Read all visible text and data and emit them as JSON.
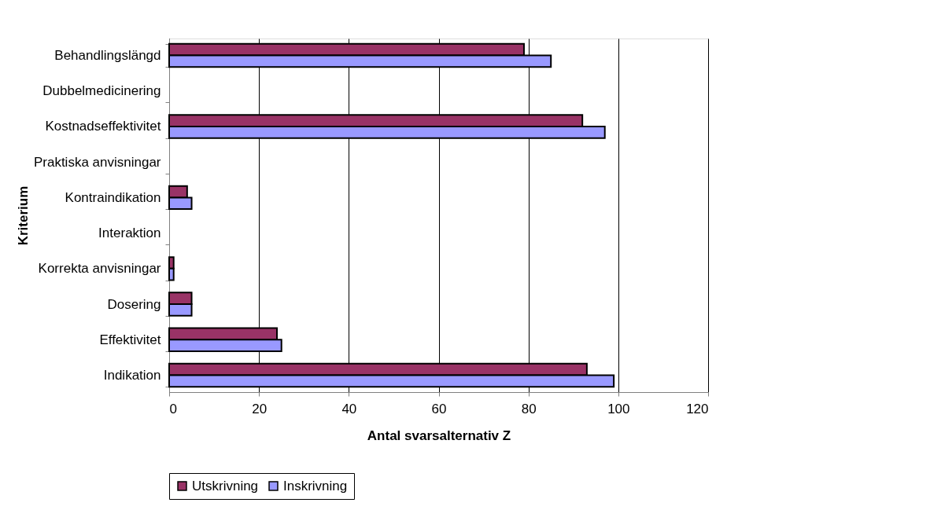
{
  "chart_data": {
    "type": "bar",
    "orientation": "horizontal",
    "xlabel": "Antal svarsalternativ Z",
    "ylabel": "Kriterium",
    "categories": [
      "Behandlingslängd",
      "Dubbelmedicinering",
      "Kostnadseffektivitet",
      "Praktiska anvisningar",
      "Kontraindikation",
      "Interaktion",
      "Korrekta anvisningar",
      "Dosering",
      "Effektivitet",
      "Indikation"
    ],
    "series": [
      {
        "name": "Utskrivning",
        "color": "#993366",
        "values": [
          79,
          null,
          92,
          null,
          4,
          null,
          1,
          5,
          24,
          93
        ]
      },
      {
        "name": "Inskrivning",
        "color": "#9999ff",
        "values": [
          85,
          null,
          97,
          null,
          5,
          null,
          1,
          5,
          25,
          99
        ]
      }
    ],
    "xlim": [
      0,
      120
    ],
    "xticks": [
      0,
      20,
      40,
      60,
      80,
      100,
      120
    ],
    "grid": "x",
    "legend": "bottom"
  }
}
